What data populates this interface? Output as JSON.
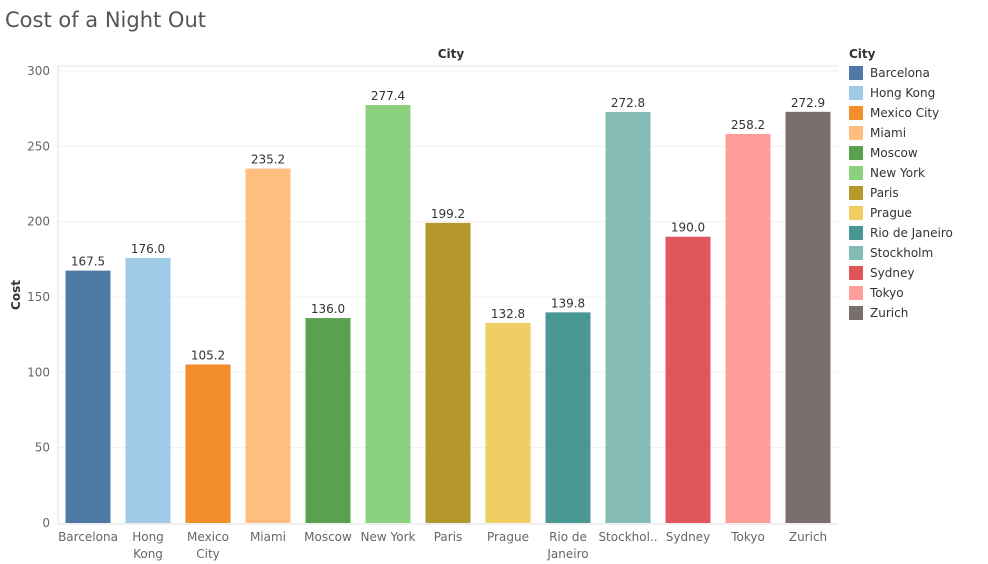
{
  "chart_data": {
    "type": "bar",
    "title": "Cost of a Night Out",
    "header": "City",
    "ylabel": "Cost",
    "xlabel": "",
    "ylim": [
      0,
      300
    ],
    "yticks": [
      0,
      50,
      100,
      150,
      200,
      250,
      300
    ],
    "grid": true,
    "legend_title": "City",
    "legend_position": "right",
    "categories": [
      "Barcelona",
      "Hong Kong",
      "Mexico City",
      "Miami",
      "Moscow",
      "New York",
      "Paris",
      "Prague",
      "Rio de Janeiro",
      "Stockholm",
      "Sydney",
      "Tokyo",
      "Zurich"
    ],
    "tick_labels": [
      [
        "Barcelona"
      ],
      [
        "Hong",
        "Kong"
      ],
      [
        "Mexico",
        "City"
      ],
      [
        "Miami"
      ],
      [
        "Moscow"
      ],
      [
        "New York"
      ],
      [
        "Paris"
      ],
      [
        "Prague"
      ],
      [
        "Rio de",
        "Janeiro"
      ],
      [
        "Stockhol.."
      ],
      [
        "Sydney"
      ],
      [
        "Tokyo"
      ],
      [
        "Zurich"
      ]
    ],
    "values": [
      167.5,
      176.0,
      105.2,
      235.2,
      136.0,
      277.4,
      199.2,
      132.8,
      139.8,
      272.8,
      190.0,
      258.2,
      272.9
    ],
    "value_labels": [
      "167.5",
      "176.0",
      "105.2",
      "235.2",
      "136.0",
      "277.4",
      "199.2",
      "132.8",
      "139.8",
      "272.8",
      "190.0",
      "258.2",
      "272.9"
    ],
    "colors": [
      "#4e79a7",
      "#a0cbe8",
      "#f28e2b",
      "#ffbe7d",
      "#59a14f",
      "#8cd17d",
      "#b6992d",
      "#f1ce63",
      "#499894",
      "#86bcb6",
      "#e15759",
      "#ff9d9a",
      "#79706e"
    ]
  }
}
